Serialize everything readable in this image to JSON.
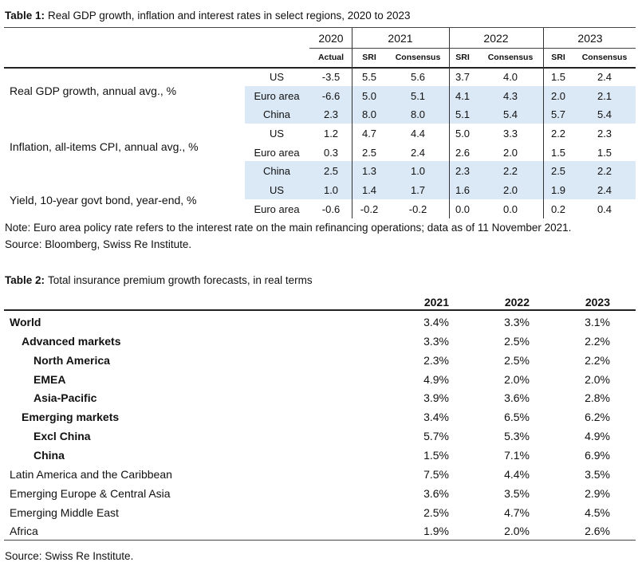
{
  "table1": {
    "caption_label": "Table 1:",
    "caption": "Real GDP growth, inflation and interest rates in select regions, 2020 to 2023",
    "years": [
      "2020",
      "2021",
      "2022",
      "2023"
    ],
    "subheaders": [
      "Actual",
      "SRI",
      "Consensus",
      "SRI",
      "Consensus",
      "SRI",
      "Consensus"
    ],
    "groups": [
      "Real GDP growth, annual avg., %",
      "Inflation, all-items CPI, annual avg., %",
      "Yield, 10-year govt bond, year-end, %"
    ],
    "rows": [
      [
        "US",
        "-3.5",
        "5.5",
        "5.6",
        "3.7",
        "4.0",
        "1.5",
        "2.4"
      ],
      [
        "Euro area",
        "-6.6",
        "5.0",
        "5.1",
        "4.1",
        "4.3",
        "2.0",
        "2.1"
      ],
      [
        "China",
        "2.3",
        "8.0",
        "8.0",
        "5.1",
        "5.4",
        "5.7",
        "5.4"
      ],
      [
        "US",
        "1.2",
        "4.7",
        "4.4",
        "5.0",
        "3.3",
        "2.2",
        "2.3"
      ],
      [
        "Euro area",
        "0.3",
        "2.5",
        "2.4",
        "2.6",
        "2.0",
        "1.5",
        "1.5"
      ],
      [
        "China",
        "2.5",
        "1.3",
        "1.0",
        "2.3",
        "2.2",
        "2.5",
        "2.2"
      ],
      [
        "US",
        "1.0",
        "1.4",
        "1.7",
        "1.6",
        "2.0",
        "1.9",
        "2.4"
      ],
      [
        "Euro area",
        "-0.6",
        "-0.2",
        "-0.2",
        "0.0",
        "0.0",
        "0.2",
        "0.4"
      ]
    ],
    "note": "Note: Euro area policy rate refers to the interest rate on the main refinancing operations; data as of 11 November 2021.",
    "source": "Source: Bloomberg, Swiss Re Institute."
  },
  "table2": {
    "caption_label": "Table 2:",
    "caption": "Total insurance premium growth forecasts, in real terms",
    "years": [
      "2021",
      "2022",
      "2023"
    ],
    "rows": [
      {
        "label": "World",
        "bold": true,
        "indent": 0,
        "values": [
          "3.4%",
          "3.3%",
          "3.1%"
        ]
      },
      {
        "label": "Advanced markets",
        "bold": true,
        "indent": 1,
        "values": [
          "3.3%",
          "2.5%",
          "2.2%"
        ]
      },
      {
        "label": "North America",
        "bold": true,
        "indent": 2,
        "values": [
          "2.3%",
          "2.5%",
          "2.2%"
        ]
      },
      {
        "label": "EMEA",
        "bold": true,
        "indent": 2,
        "values": [
          "4.9%",
          "2.0%",
          "2.0%"
        ]
      },
      {
        "label": "Asia-Pacific",
        "bold": true,
        "indent": 2,
        "values": [
          "3.9%",
          "3.6%",
          "2.8%"
        ]
      },
      {
        "label": "Emerging markets",
        "bold": true,
        "indent": 1,
        "values": [
          "3.4%",
          "6.5%",
          "6.2%"
        ]
      },
      {
        "label": "Excl China",
        "bold": true,
        "indent": 2,
        "values": [
          "5.7%",
          "5.3%",
          "4.9%"
        ]
      },
      {
        "label": "China",
        "bold": true,
        "indent": 2,
        "values": [
          "1.5%",
          "7.1%",
          "6.9%"
        ]
      },
      {
        "label": "Latin America and the Caribbean",
        "bold": false,
        "indent": 0,
        "values": [
          "7.5%",
          "4.4%",
          "3.5%"
        ]
      },
      {
        "label": "Emerging Europe & Central Asia",
        "bold": false,
        "indent": 0,
        "values": [
          "3.6%",
          "3.5%",
          "2.9%"
        ]
      },
      {
        "label": "Emerging Middle East",
        "bold": false,
        "indent": 0,
        "values": [
          "2.5%",
          "4.7%",
          "4.5%"
        ]
      },
      {
        "label": "Africa",
        "bold": false,
        "indent": 0,
        "values": [
          "1.9%",
          "2.0%",
          "2.6%"
        ]
      }
    ],
    "source": "Source: Swiss Re Institute."
  }
}
